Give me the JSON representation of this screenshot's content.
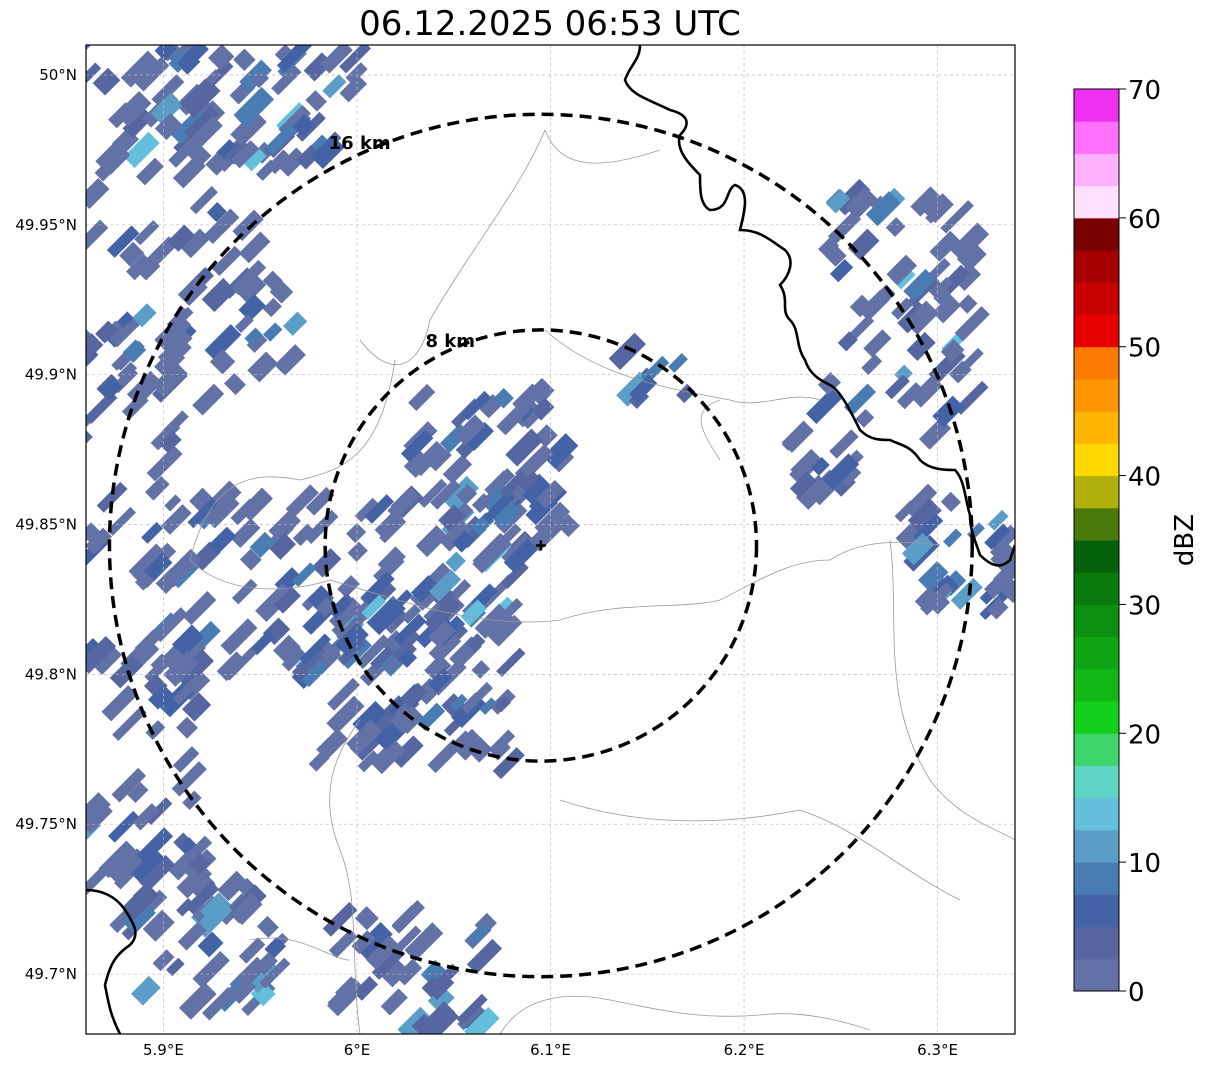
{
  "title": "06.12.2025 06:53 UTC",
  "map": {
    "lon_range": [
      5.86,
      6.34
    ],
    "lat_range": [
      49.68,
      50.01
    ],
    "center": {
      "lon": 6.095,
      "lat": 49.843
    },
    "x_ticks": [
      {
        "value": 5.9,
        "label": "5.9°E"
      },
      {
        "value": 6.0,
        "label": "6°E"
      },
      {
        "value": 6.1,
        "label": "6.1°E"
      },
      {
        "value": 6.2,
        "label": "6.2°E"
      },
      {
        "value": 6.3,
        "label": "6.3°E"
      }
    ],
    "y_ticks": [
      {
        "value": 50.0,
        "label": "50°N"
      },
      {
        "value": 49.95,
        "label": "49.95°N"
      },
      {
        "value": 49.9,
        "label": "49.9°N"
      },
      {
        "value": 49.85,
        "label": "49.85°N"
      },
      {
        "value": 49.8,
        "label": "49.8°N"
      },
      {
        "value": 49.75,
        "label": "49.75°N"
      },
      {
        "value": 49.7,
        "label": "49.7°N"
      }
    ],
    "range_rings": [
      {
        "radius_km": 8,
        "label": "8 km"
      },
      {
        "radius_km": 16,
        "label": "16 km"
      }
    ],
    "echo_colors": [
      "#6272a6",
      "#5566a0",
      "#4462a6",
      "#4a7cb4",
      "#5a9ec8",
      "#63bfdc",
      "#5ed4c4"
    ],
    "echo_clusters": [
      {
        "lon": 5.91,
        "lat": 49.95,
        "rlon": 0.06,
        "rlat": 0.06,
        "n": 90
      },
      {
        "lon": 5.95,
        "lat": 49.99,
        "rlon": 0.05,
        "rlat": 0.02,
        "n": 40
      },
      {
        "lon": 5.88,
        "lat": 49.88,
        "rlon": 0.03,
        "rlat": 0.05,
        "n": 40
      },
      {
        "lon": 5.96,
        "lat": 49.83,
        "rlon": 0.07,
        "rlat": 0.03,
        "n": 90
      },
      {
        "lon": 6.03,
        "lat": 49.8,
        "rlon": 0.05,
        "rlat": 0.03,
        "n": 80
      },
      {
        "lon": 6.07,
        "lat": 49.87,
        "rlon": 0.04,
        "rlat": 0.025,
        "n": 60
      },
      {
        "lon": 6.06,
        "lat": 49.83,
        "rlon": 0.025,
        "rlat": 0.02,
        "n": 25
      },
      {
        "lon": 5.89,
        "lat": 49.77,
        "rlon": 0.03,
        "rlat": 0.04,
        "n": 40
      },
      {
        "lon": 5.92,
        "lat": 49.71,
        "rlon": 0.04,
        "rlat": 0.02,
        "n": 40
      },
      {
        "lon": 6.03,
        "lat": 49.7,
        "rlon": 0.04,
        "rlat": 0.02,
        "n": 35
      },
      {
        "lon": 6.28,
        "lat": 49.92,
        "rlon": 0.04,
        "rlat": 0.04,
        "n": 60
      },
      {
        "lon": 6.31,
        "lat": 49.84,
        "rlon": 0.03,
        "rlat": 0.02,
        "n": 30
      },
      {
        "lon": 6.24,
        "lat": 49.87,
        "rlon": 0.02,
        "rlat": 0.01,
        "n": 15
      },
      {
        "lon": 6.15,
        "lat": 49.9,
        "rlon": 0.02,
        "rlat": 0.01,
        "n": 8
      }
    ]
  },
  "colorbar": {
    "label": "dBZ",
    "min": 0,
    "max": 70,
    "tick_values": [
      0,
      10,
      20,
      30,
      40,
      50,
      60,
      70
    ],
    "tick_labels": [
      "0",
      "10",
      "20",
      "30",
      "40",
      "50",
      "60",
      "70"
    ],
    "colors": [
      "#6272a6",
      "#5566a0",
      "#4462a6",
      "#4a7cb4",
      "#5a9ec8",
      "#63bfdc",
      "#5ed4c4",
      "#3ed66c",
      "#14cf1c",
      "#12b818",
      "#0fa414",
      "#0c900f",
      "#0a7a0c",
      "#06620a",
      "#4a7a0a",
      "#b0b00a",
      "#ffd800",
      "#ffb400",
      "#ff9600",
      "#ff7a00",
      "#e80000",
      "#c80000",
      "#a60000",
      "#7a0000",
      "#ffe0ff",
      "#ffb0ff",
      "#ff70ff",
      "#f030f0"
    ]
  }
}
